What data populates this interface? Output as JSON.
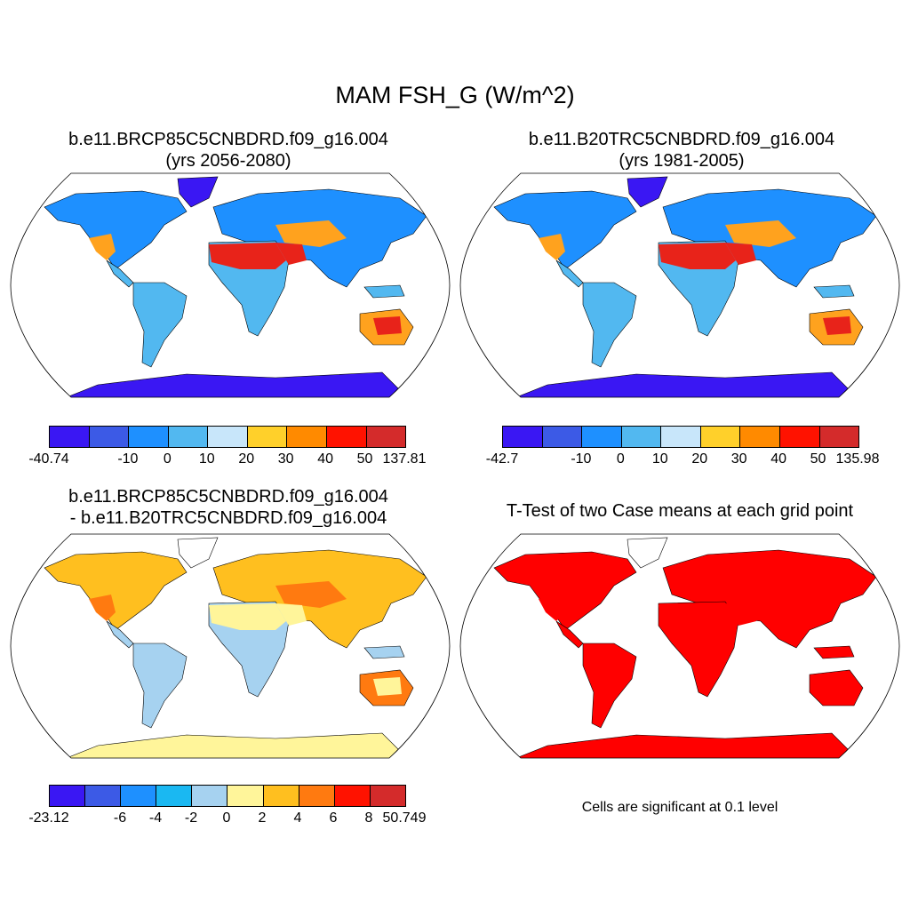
{
  "title": "MAM FSH_G (W/m^2)",
  "panels": [
    {
      "title_line1": "b.e11.BRCP85C5CNBDRD.f09_g16.004",
      "title_line2": "(yrs 2056-2080)",
      "colorbar": {
        "colors": [
          "#3a17f3",
          "#3c5ae6",
          "#1e90ff",
          "#52b8f0",
          "#c8e6fa",
          "#ffd02a",
          "#ff8a00",
          "#ff1200",
          "#d42b2b"
        ],
        "labels": [
          "-40.74",
          "-10",
          "0",
          "10",
          "20",
          "30",
          "40",
          "50",
          "137.81"
        ]
      }
    },
    {
      "title_line1": "b.e11.B20TRC5CNBDRD.f09_g16.004",
      "title_line2": "(yrs 1981-2005)",
      "colorbar": {
        "colors": [
          "#3a17f3",
          "#3c5ae6",
          "#1e90ff",
          "#52b8f0",
          "#c8e6fa",
          "#ffd02a",
          "#ff8a00",
          "#ff1200",
          "#d42b2b"
        ],
        "labels": [
          "-42.7",
          "-10",
          "0",
          "10",
          "20",
          "30",
          "40",
          "50",
          "135.98"
        ]
      }
    },
    {
      "title_line1": "b.e11.BRCP85C5CNBDRD.f09_g16.004",
      "title_line2": "- b.e11.B20TRC5CNBDRD.f09_g16.004",
      "colorbar": {
        "colors": [
          "#3a17f3",
          "#3c5ae6",
          "#1e90ff",
          "#1ab8f2",
          "#a6d2f0",
          "#fff59a",
          "#ffbf1f",
          "#ff7a10",
          "#ff1200",
          "#d42b2b"
        ],
        "labels": [
          "-23.12",
          "-6",
          "-4",
          "-2",
          "0",
          "2",
          "4",
          "6",
          "8",
          "50.749"
        ]
      }
    },
    {
      "title_line1": "T-Test of two Case means at each grid point",
      "note": "Cells are significant at 0.1 level"
    }
  ],
  "map_palettes": {
    "p1": {
      "ocean": "#ffffff",
      "land": "#52b8f0",
      "north": "#1e90ff",
      "desert": "#e8231a",
      "semiarid": "#ffa21e",
      "antarctica": "#3a17f3",
      "greenland": "#3a17f3",
      "tropics": "#52b8f0"
    },
    "p2": {
      "ocean": "#ffffff",
      "land": "#52b8f0",
      "north": "#1e90ff",
      "desert": "#e8231a",
      "semiarid": "#ffa21e",
      "antarctica": "#3a17f3",
      "greenland": "#3a17f3",
      "tropics": "#52b8f0"
    },
    "p3": {
      "ocean": "#ffffff",
      "land": "#a6d2f0",
      "north": "#ffbf1f",
      "desert": "#fff59a",
      "semiarid": "#ff7a10",
      "antarctica": "#fff59a",
      "greenland": "#ffffff",
      "tropics": "#a6d2f0"
    },
    "p4": {
      "ocean": "#ffffff",
      "land": "#ff0000",
      "north": "#ff0000",
      "desert": "#ff0000",
      "semiarid": "#ff0000",
      "antarctica": "#ff0000",
      "greenland": "#ffffff",
      "tropics": "#ff0000"
    }
  }
}
